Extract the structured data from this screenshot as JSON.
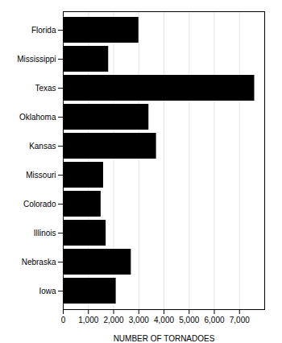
{
  "chart_data": {
    "type": "bar",
    "orientation": "horizontal",
    "categories": [
      "Florida",
      "Mississippi",
      "Texas",
      "Oklahoma",
      "Kansas",
      "Missouri",
      "Colorado",
      "Illinois",
      "Nebraska",
      "Iowa"
    ],
    "values": [
      3000,
      1800,
      7600,
      3400,
      3700,
      1600,
      1500,
      1700,
      2700,
      2100
    ],
    "xlabel": "NUMBER OF TORNADOES",
    "xlim": [
      0,
      8000
    ],
    "xticks": [
      0,
      {
        "value": 1000,
        "label": "1,000"
      },
      {
        "value": 2000,
        "label": "2,000"
      },
      {
        "value": 3000,
        "label": "3,000"
      },
      {
        "value": 4000,
        "label": "4,000"
      },
      {
        "value": 5000,
        "label": "5,000"
      },
      {
        "value": 6000,
        "label": "6,000"
      },
      {
        "value": 7000,
        "label": "7,000"
      }
    ],
    "grid": true
  }
}
